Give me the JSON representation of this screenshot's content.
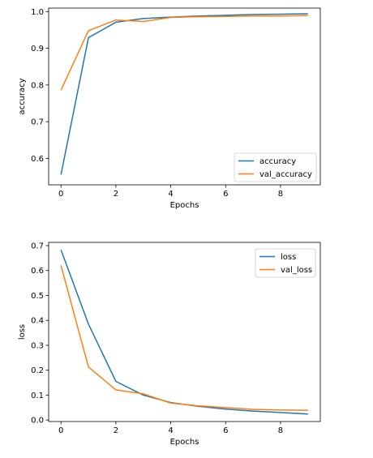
{
  "chart_data": [
    {
      "type": "line",
      "xlabel": "Epochs",
      "ylabel": "accuracy",
      "xlim": [
        -0.45,
        9.45
      ],
      "ylim": [
        0.528,
        1.0095
      ],
      "xticks": [
        0,
        2,
        4,
        6,
        8
      ],
      "yticks": [
        0.6,
        0.7,
        0.8,
        0.9,
        1.0
      ],
      "ytick_labels": [
        "0.6",
        "0.7",
        "0.8",
        "0.9",
        "1.0"
      ],
      "legend_position": "lower-right",
      "x": [
        0,
        1,
        2,
        3,
        4,
        5,
        6,
        7,
        8,
        9
      ],
      "series": [
        {
          "name": "accuracy",
          "color": "#1f77b4",
          "values": [
            0.556,
            0.929,
            0.971,
            0.981,
            0.985,
            0.988,
            0.99,
            0.992,
            0.993,
            0.994
          ]
        },
        {
          "name": "val_accuracy",
          "color": "#ff7f0e",
          "values": [
            0.786,
            0.948,
            0.977,
            0.973,
            0.984,
            0.986,
            0.987,
            0.988,
            0.988,
            0.989
          ]
        }
      ]
    },
    {
      "type": "line",
      "xlabel": "Epochs",
      "ylabel": "loss",
      "xlim": [
        -0.45,
        9.45
      ],
      "ylim": [
        -0.006,
        0.713
      ],
      "xticks": [
        0,
        2,
        4,
        6,
        8
      ],
      "yticks": [
        0.0,
        0.1,
        0.2,
        0.3,
        0.4,
        0.5,
        0.6,
        0.7
      ],
      "ytick_labels": [
        "0.0",
        "0.1",
        "0.2",
        "0.3",
        "0.4",
        "0.5",
        "0.6",
        "0.7"
      ],
      "legend_position": "upper-right",
      "x": [
        0,
        1,
        2,
        3,
        4,
        5,
        6,
        7,
        8,
        9
      ],
      "series": [
        {
          "name": "loss",
          "color": "#1f77b4",
          "values": [
            0.683,
            0.385,
            0.155,
            0.1,
            0.07,
            0.055,
            0.044,
            0.036,
            0.03,
            0.024
          ]
        },
        {
          "name": "val_loss",
          "color": "#ff7f0e",
          "values": [
            0.62,
            0.213,
            0.121,
            0.105,
            0.068,
            0.057,
            0.05,
            0.043,
            0.04,
            0.039
          ]
        }
      ]
    }
  ]
}
